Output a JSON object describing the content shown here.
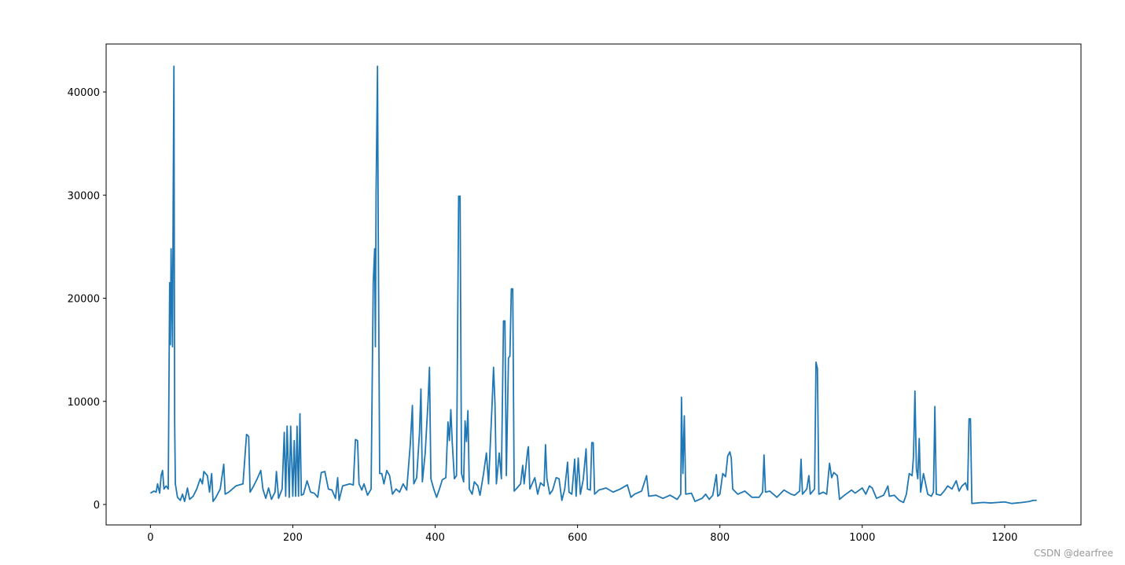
{
  "chart_data": {
    "type": "line",
    "color": "#1f77b4",
    "xlim": [
      -62.25,
      1307.25
    ],
    "ylim": [
      -1980,
      44650
    ],
    "xticks": [
      0,
      200,
      400,
      600,
      800,
      1000,
      1200
    ],
    "yticks": [
      0,
      10000,
      20000,
      30000,
      40000
    ],
    "x": [
      0,
      5,
      8,
      10,
      13,
      15,
      17,
      19,
      22,
      25,
      27,
      28,
      29,
      30,
      31,
      32,
      33,
      34,
      35,
      38,
      42,
      45,
      48,
      52,
      55,
      60,
      65,
      70,
      73,
      75,
      80,
      83,
      86,
      88,
      92,
      98,
      103,
      105,
      110,
      120,
      130,
      135,
      138,
      140,
      145,
      150,
      155,
      158,
      162,
      166,
      170,
      175,
      177,
      180,
      185,
      188,
      190,
      192,
      195,
      197,
      200,
      202,
      204,
      206,
      208,
      210,
      212,
      215,
      220,
      225,
      230,
      235,
      240,
      245,
      250,
      255,
      260,
      263,
      265,
      270,
      280,
      285,
      288,
      291,
      293,
      297,
      300,
      305,
      310,
      313,
      315,
      316,
      317,
      319,
      320,
      322,
      325,
      328,
      332,
      336,
      340,
      345,
      350,
      355,
      360,
      365,
      368,
      370,
      374,
      378,
      380,
      382,
      386,
      390,
      392,
      394,
      398,
      402,
      406,
      410,
      415,
      418,
      420,
      422,
      424,
      427,
      430,
      433,
      435,
      437,
      440,
      442,
      444,
      446,
      448,
      452,
      455,
      460,
      463,
      468,
      472,
      475,
      480,
      482,
      484,
      486,
      490,
      493,
      496,
      498,
      500,
      503,
      505,
      507,
      509,
      511,
      515,
      520,
      523,
      525,
      530,
      531,
      533,
      540,
      544,
      548,
      553,
      555,
      557,
      561,
      565,
      570,
      574,
      578,
      582,
      586,
      588,
      592,
      596,
      598,
      601,
      604,
      608,
      612,
      614,
      618,
      620,
      622,
      624,
      630,
      640,
      650,
      660,
      670,
      675,
      680,
      690,
      697,
      700,
      710,
      720,
      730,
      740,
      745,
      746,
      748,
      750,
      752,
      760,
      765,
      775,
      780,
      785,
      790,
      795,
      797,
      800,
      804,
      808,
      811,
      814,
      816,
      818,
      825,
      835,
      845,
      855,
      860,
      862,
      864,
      870,
      880,
      890,
      900,
      905,
      912,
      914,
      916,
      922,
      925,
      927,
      933,
      935,
      937,
      939,
      945,
      950,
      954,
      957,
      960,
      965,
      968,
      975,
      985,
      990,
      1000,
      1005,
      1010,
      1014,
      1020,
      1030,
      1036,
      1038,
      1045,
      1052,
      1058,
      1062,
      1066,
      1070,
      1072,
      1074,
      1076,
      1078,
      1080,
      1082,
      1086,
      1089,
      1092,
      1097,
      1100,
      1102,
      1104,
      1110,
      1115,
      1120,
      1126,
      1132,
      1136,
      1140,
      1145,
      1148,
      1150,
      1152,
      1154,
      1170,
      1180,
      1200,
      1210,
      1225,
      1235,
      1240,
      1245
    ],
    "values": [
      1100,
      1300,
      1200,
      2000,
      1100,
      2800,
      3300,
      1500,
      1800,
      1500,
      21500,
      15500,
      24800,
      20000,
      15300,
      30300,
      42500,
      8000,
      2000,
      700,
      400,
      1000,
      300,
      1600,
      500,
      800,
      1500,
      2500,
      2000,
      3200,
      2800,
      1200,
      3000,
      300,
      700,
      1500,
      3900,
      1000,
      1200,
      1800,
      2000,
      6800,
      6600,
      1200,
      1800,
      2500,
      3300,
      1500,
      600,
      1600,
      500,
      1200,
      3200,
      600,
      1500,
      7000,
      800,
      7600,
      700,
      7600,
      800,
      6200,
      800,
      7600,
      800,
      8800,
      900,
      1000,
      2300,
      1200,
      1100,
      700,
      3100,
      3200,
      1500,
      1400,
      600,
      2600,
      400,
      1800,
      2000,
      1900,
      6300,
      6200,
      2000,
      1400,
      2000,
      900,
      1500,
      21500,
      24800,
      15300,
      30300,
      42500,
      27000,
      3000,
      3000,
      2000,
      3300,
      2800,
      1000,
      1500,
      1200,
      2000,
      1400,
      5800,
      9600,
      2000,
      2600,
      7000,
      11200,
      2200,
      5000,
      10000,
      13300,
      2500,
      1500,
      700,
      1500,
      2400,
      2600,
      8000,
      6200,
      9200,
      6000,
      2500,
      2800,
      29900,
      29900,
      3000,
      2200,
      8100,
      6100,
      9100,
      1500,
      1000,
      2200,
      1800,
      900,
      3000,
      5000,
      2000,
      9800,
      13300,
      9800,
      2000,
      5000,
      2500,
      17800,
      17800,
      2800,
      14200,
      14400,
      20900,
      20900,
      1300,
      1600,
      2000,
      3800,
      2000,
      5300,
      5600,
      1500,
      2600,
      1000,
      2100,
      1800,
      5800,
      2500,
      1000,
      1400,
      2600,
      2500,
      400,
      1500,
      4100,
      1200,
      1000,
      4400,
      800,
      4500,
      1000,
      2400,
      5400,
      1500,
      1400,
      6000,
      6000,
      1000,
      1400,
      1600,
      1200,
      1500,
      1900,
      700,
      1000,
      1300,
      2800,
      800,
      900,
      600,
      900,
      500,
      1000,
      10400,
      3000,
      8600,
      1000,
      1100,
      300,
      600,
      1000,
      500,
      900,
      2900,
      800,
      1000,
      3000,
      2700,
      4700,
      5100,
      4500,
      1500,
      1000,
      1300,
      700,
      700,
      1200,
      4800,
      1200,
      1300,
      700,
      1400,
      1000,
      900,
      1300,
      4400,
      1000,
      1500,
      2800,
      1000,
      1500,
      13800,
      13200,
      1000,
      1200,
      1000,
      4000,
      2600,
      3100,
      2800,
      500,
      900,
      1400,
      1100,
      1600,
      1000,
      1800,
      1600,
      600,
      900,
      1800,
      800,
      900,
      400,
      200,
      1000,
      3000,
      2800,
      4700,
      11000,
      3500,
      2500,
      6400,
      1200,
      3000,
      2000,
      1000,
      800,
      1200,
      9500,
      1000,
      900,
      1300,
      1800,
      1500,
      2300,
      1300,
      1800,
      2100,
      1400,
      8300,
      8300,
      100,
      200,
      150,
      250,
      100,
      200,
      300,
      400,
      400
    ]
  },
  "watermark": "CSDN @dearfree"
}
